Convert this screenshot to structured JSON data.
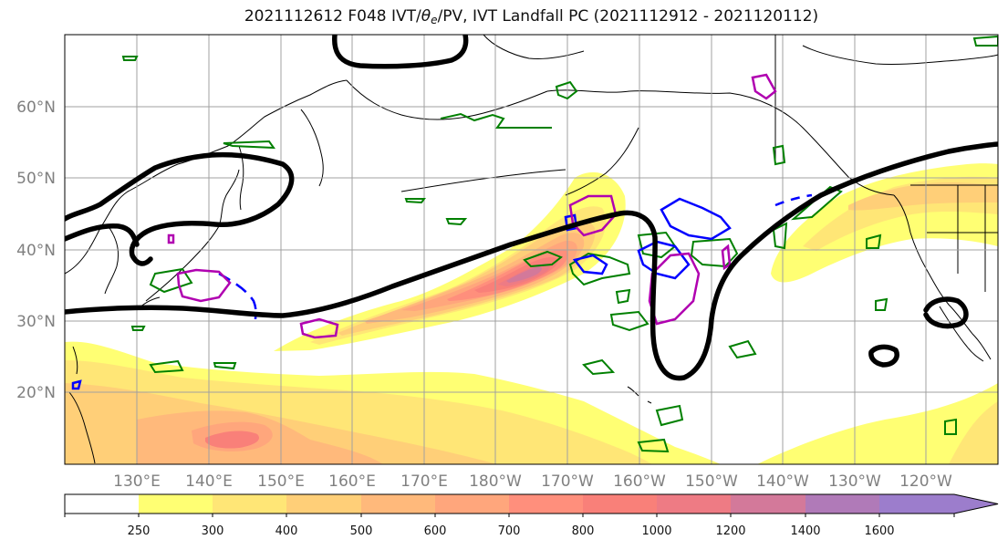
{
  "title": {
    "prefix": "2021112612 F048 IVT/",
    "theta": "θ",
    "sub": "e",
    "suffix": "/PV, IVT Landfall PC (2021112912 - 2021120112)"
  },
  "map": {
    "projection": "equirectangular",
    "lon_range_east": [
      120,
      250
    ],
    "lat_range": [
      10,
      70
    ],
    "lat_ticks": [
      "20°N",
      "30°N",
      "40°N",
      "50°N",
      "60°N"
    ],
    "lon_ticks": [
      "130°E",
      "140°E",
      "150°E",
      "160°E",
      "170°E",
      "180°W",
      "170°W",
      "160°W",
      "150°W",
      "140°W",
      "130°W",
      "120°W"
    ],
    "gridlines": true,
    "coastline_color": "#000000",
    "contour_colors": {
      "theta_e": "#000000",
      "pv_green": "#008000",
      "pv_blue": "#0000ff",
      "pv_magenta": "#b000b0"
    }
  },
  "colorbar": {
    "levels": [
      "250",
      "300",
      "400",
      "500",
      "600",
      "700",
      "800",
      "1000",
      "1200",
      "1400",
      "1600"
    ],
    "colors": [
      "#ffffff",
      "#ffff73",
      "#ffe676",
      "#ffcf78",
      "#ffb97b",
      "#ffa67c",
      "#ff8f7c",
      "#f98079",
      "#ee7b84",
      "#d3799a",
      "#b07ab8",
      "#9c7dcc"
    ],
    "extend": "max"
  }
}
